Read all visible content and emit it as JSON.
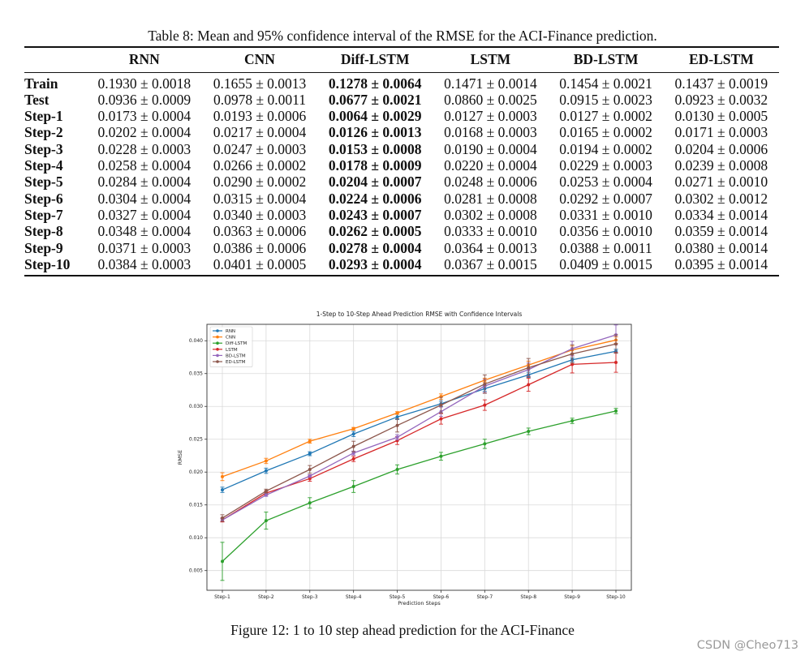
{
  "table": {
    "caption": "Table 8: Mean and 95% confidence interval of the RMSE for the ACI-Finance prediction.",
    "columns": [
      "RNN",
      "CNN",
      "Diff-LSTM",
      "LSTM",
      "BD-LSTM",
      "ED-LSTM"
    ],
    "best_column_index": 2,
    "rows": [
      {
        "label": "Train",
        "cells": [
          "0.1930 ± 0.0018",
          "0.1655 ± 0.0013",
          "0.1278 ± 0.0064",
          "0.1471 ± 0.0014",
          "0.1454 ± 0.0021",
          "0.1437 ± 0.0019"
        ]
      },
      {
        "label": "Test",
        "cells": [
          "0.0936 ± 0.0009",
          "0.0978 ± 0.0011",
          "0.0677 ± 0.0021",
          "0.0860 ± 0.0025",
          "0.0915 ± 0.0023",
          "0.0923 ± 0.0032"
        ]
      },
      {
        "label": "Step-1",
        "cells": [
          "0.0173 ± 0.0004",
          "0.0193 ± 0.0006",
          "0.0064 ± 0.0029",
          "0.0127 ± 0.0003",
          "0.0127 ± 0.0002",
          "0.0130 ± 0.0005"
        ]
      },
      {
        "label": "Step-2",
        "cells": [
          "0.0202 ± 0.0004",
          "0.0217 ± 0.0004",
          "0.0126 ± 0.0013",
          "0.0168 ± 0.0003",
          "0.0165 ± 0.0002",
          "0.0171 ± 0.0003"
        ]
      },
      {
        "label": "Step-3",
        "cells": [
          "0.0228 ± 0.0003",
          "0.0247 ± 0.0003",
          "0.0153 ± 0.0008",
          "0.0190 ± 0.0004",
          "0.0194 ± 0.0002",
          "0.0204 ± 0.0006"
        ]
      },
      {
        "label": "Step-4",
        "cells": [
          "0.0258 ± 0.0004",
          "0.0266 ± 0.0002",
          "0.0178 ± 0.0009",
          "0.0220 ± 0.0004",
          "0.0229 ± 0.0003",
          "0.0239 ± 0.0008"
        ]
      },
      {
        "label": "Step-5",
        "cells": [
          "0.0284 ± 0.0004",
          "0.0290 ± 0.0002",
          "0.0204 ± 0.0007",
          "0.0248 ± 0.0006",
          "0.0253 ± 0.0004",
          "0.0271 ± 0.0010"
        ]
      },
      {
        "label": "Step-6",
        "cells": [
          "0.0304 ± 0.0004",
          "0.0315 ± 0.0004",
          "0.0224 ± 0.0006",
          "0.0281 ± 0.0008",
          "0.0292 ± 0.0007",
          "0.0302 ± 0.0012"
        ]
      },
      {
        "label": "Step-7",
        "cells": [
          "0.0327 ± 0.0004",
          "0.0340 ± 0.0003",
          "0.0243 ± 0.0007",
          "0.0302 ± 0.0008",
          "0.0331 ± 0.0010",
          "0.0334 ± 0.0014"
        ]
      },
      {
        "label": "Step-8",
        "cells": [
          "0.0348 ± 0.0004",
          "0.0363 ± 0.0006",
          "0.0262 ± 0.0005",
          "0.0333 ± 0.0010",
          "0.0356 ± 0.0010",
          "0.0359 ± 0.0014"
        ]
      },
      {
        "label": "Step-9",
        "cells": [
          "0.0371 ± 0.0003",
          "0.0386 ± 0.0006",
          "0.0278 ± 0.0004",
          "0.0364 ± 0.0013",
          "0.0388 ± 0.0011",
          "0.0380 ± 0.0014"
        ]
      },
      {
        "label": "Step-10",
        "cells": [
          "0.0384 ± 0.0003",
          "0.0401 ± 0.0005",
          "0.0293 ± 0.0004",
          "0.0367 ± 0.0015",
          "0.0409 ± 0.0015",
          "0.0395 ± 0.0014"
        ]
      }
    ]
  },
  "figure": {
    "caption": "Figure 12: 1 to 10 step ahead prediction for the ACI-Finance"
  },
  "chart_data": {
    "type": "line",
    "title": "1-Step to 10-Step Ahead Prediction RMSE with Confidence Intervals",
    "xlabel": "Prediction Steps",
    "ylabel": "RMSE",
    "categories": [
      "Step-1",
      "Step-2",
      "Step-3",
      "Step-4",
      "Step-5",
      "Step-6",
      "Step-7",
      "Step-8",
      "Step-9",
      "Step-10"
    ],
    "ylim": [
      0.002,
      0.0425
    ],
    "yticks": [
      0.005,
      0.01,
      0.015,
      0.02,
      0.025,
      0.03,
      0.035,
      0.04
    ],
    "ytick_labels": [
      "0.005",
      "0.010",
      "0.015",
      "0.020",
      "0.025",
      "0.030",
      "0.035",
      "0.040"
    ],
    "grid": true,
    "legend_position": "top-left",
    "series": [
      {
        "name": "RNN",
        "color": "#1f77b4",
        "values": [
          0.0173,
          0.0202,
          0.0228,
          0.0258,
          0.0284,
          0.0304,
          0.0327,
          0.0348,
          0.0371,
          0.0384
        ],
        "errors": [
          0.0004,
          0.0004,
          0.0003,
          0.0004,
          0.0004,
          0.0004,
          0.0004,
          0.0004,
          0.0003,
          0.0003
        ]
      },
      {
        "name": "CNN",
        "color": "#ff7f0e",
        "values": [
          0.0193,
          0.0217,
          0.0247,
          0.0266,
          0.029,
          0.0315,
          0.034,
          0.0363,
          0.0386,
          0.0401
        ],
        "errors": [
          0.0006,
          0.0004,
          0.0003,
          0.0002,
          0.0002,
          0.0004,
          0.0003,
          0.0006,
          0.0006,
          0.0005
        ]
      },
      {
        "name": "Diff-LSTM",
        "color": "#2ca02c",
        "values": [
          0.0064,
          0.0126,
          0.0153,
          0.0178,
          0.0204,
          0.0224,
          0.0243,
          0.0262,
          0.0278,
          0.0293
        ],
        "errors": [
          0.0029,
          0.0013,
          0.0008,
          0.0009,
          0.0007,
          0.0006,
          0.0007,
          0.0005,
          0.0004,
          0.0004
        ]
      },
      {
        "name": "LSTM",
        "color": "#d62728",
        "values": [
          0.0127,
          0.0168,
          0.019,
          0.022,
          0.0248,
          0.0281,
          0.0302,
          0.0333,
          0.0364,
          0.0367
        ],
        "errors": [
          0.0003,
          0.0003,
          0.0004,
          0.0004,
          0.0006,
          0.0008,
          0.0008,
          0.001,
          0.0013,
          0.0015
        ]
      },
      {
        "name": "BD-LSTM",
        "color": "#9467bd",
        "values": [
          0.0127,
          0.0165,
          0.0194,
          0.0229,
          0.0253,
          0.0292,
          0.0331,
          0.0356,
          0.0388,
          0.0409
        ],
        "errors": [
          0.0002,
          0.0002,
          0.0002,
          0.0003,
          0.0004,
          0.0007,
          0.001,
          0.001,
          0.0011,
          0.0015
        ]
      },
      {
        "name": "ED-LSTM",
        "color": "#8c564b",
        "values": [
          0.013,
          0.0171,
          0.0204,
          0.0239,
          0.0271,
          0.0302,
          0.0334,
          0.0359,
          0.038,
          0.0395
        ],
        "errors": [
          0.0005,
          0.0003,
          0.0006,
          0.0008,
          0.001,
          0.0012,
          0.0014,
          0.0014,
          0.0014,
          0.0014
        ]
      }
    ]
  },
  "watermark": "CSDN @Cheo713"
}
